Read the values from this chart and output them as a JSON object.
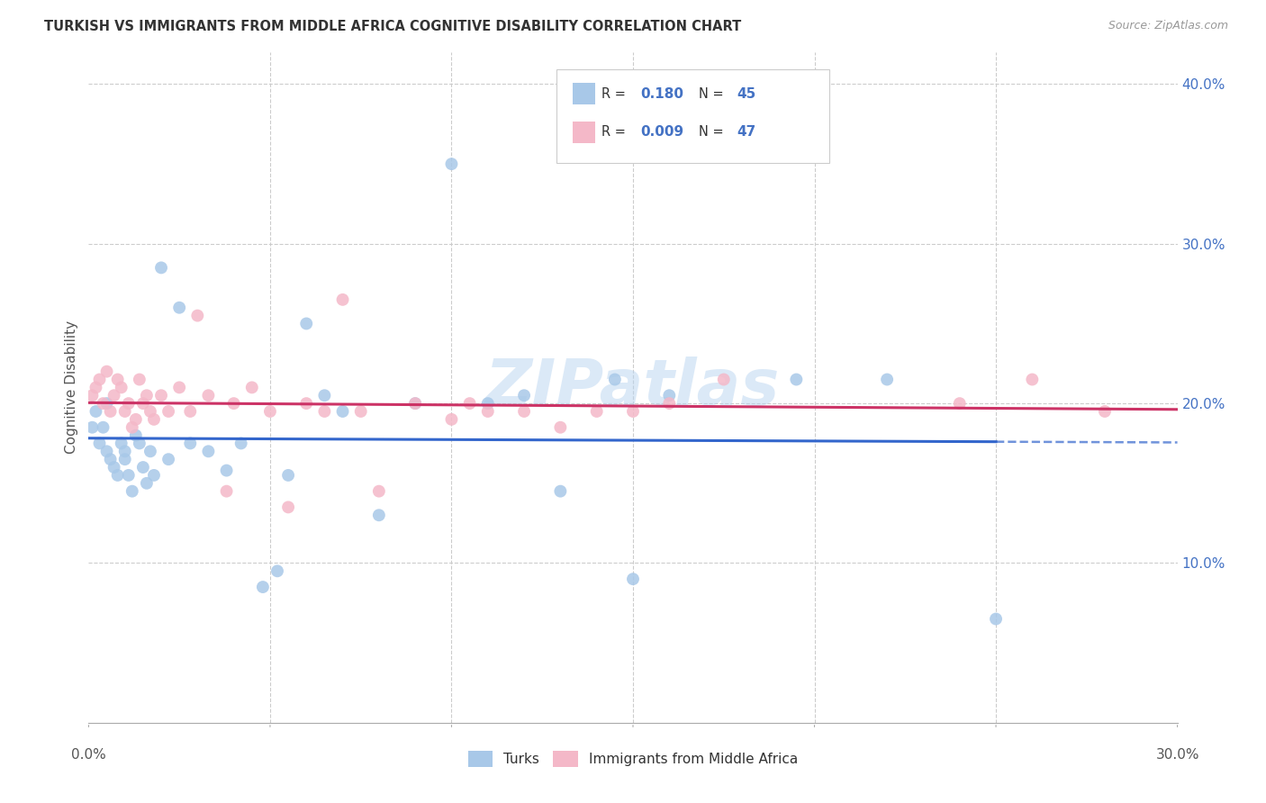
{
  "title": "TURKISH VS IMMIGRANTS FROM MIDDLE AFRICA COGNITIVE DISABILITY CORRELATION CHART",
  "source": "Source: ZipAtlas.com",
  "ylabel": "Cognitive Disability",
  "xlim": [
    0.0,
    0.3
  ],
  "ylim": [
    0.0,
    0.42
  ],
  "background_color": "#ffffff",
  "grid_color": "#cccccc",
  "turks_color": "#a8c8e8",
  "immigrants_color": "#f4b8c8",
  "turks_line_color": "#3366cc",
  "immigrants_line_color": "#cc3366",
  "turks_R": 0.18,
  "turks_N": 45,
  "immigrants_R": 0.009,
  "immigrants_N": 47,
  "watermark": "ZIPatlas",
  "ytick_color": "#4472c4",
  "xtick_color": "#555555",
  "turks_x": [
    0.001,
    0.002,
    0.003,
    0.004,
    0.005,
    0.005,
    0.006,
    0.007,
    0.008,
    0.009,
    0.01,
    0.01,
    0.011,
    0.012,
    0.013,
    0.014,
    0.015,
    0.016,
    0.017,
    0.018,
    0.02,
    0.022,
    0.025,
    0.028,
    0.033,
    0.038,
    0.042,
    0.048,
    0.052,
    0.055,
    0.06,
    0.065,
    0.07,
    0.08,
    0.09,
    0.1,
    0.11,
    0.12,
    0.13,
    0.145,
    0.16,
    0.195,
    0.22,
    0.25,
    0.15
  ],
  "turks_y": [
    0.185,
    0.195,
    0.175,
    0.185,
    0.17,
    0.2,
    0.165,
    0.16,
    0.155,
    0.175,
    0.17,
    0.165,
    0.155,
    0.145,
    0.18,
    0.175,
    0.16,
    0.15,
    0.17,
    0.155,
    0.285,
    0.165,
    0.26,
    0.175,
    0.17,
    0.158,
    0.175,
    0.085,
    0.095,
    0.155,
    0.25,
    0.205,
    0.195,
    0.13,
    0.2,
    0.35,
    0.2,
    0.205,
    0.145,
    0.215,
    0.205,
    0.215,
    0.215,
    0.065,
    0.09
  ],
  "immigrants_x": [
    0.001,
    0.002,
    0.003,
    0.004,
    0.005,
    0.006,
    0.007,
    0.008,
    0.009,
    0.01,
    0.011,
    0.012,
    0.013,
    0.014,
    0.015,
    0.016,
    0.017,
    0.018,
    0.02,
    0.022,
    0.025,
    0.028,
    0.03,
    0.033,
    0.038,
    0.04,
    0.045,
    0.05,
    0.055,
    0.06,
    0.065,
    0.07,
    0.075,
    0.08,
    0.09,
    0.1,
    0.105,
    0.11,
    0.12,
    0.13,
    0.14,
    0.15,
    0.16,
    0.175,
    0.24,
    0.26,
    0.28
  ],
  "immigrants_y": [
    0.205,
    0.21,
    0.215,
    0.2,
    0.22,
    0.195,
    0.205,
    0.215,
    0.21,
    0.195,
    0.2,
    0.185,
    0.19,
    0.215,
    0.2,
    0.205,
    0.195,
    0.19,
    0.205,
    0.195,
    0.21,
    0.195,
    0.255,
    0.205,
    0.145,
    0.2,
    0.21,
    0.195,
    0.135,
    0.2,
    0.195,
    0.265,
    0.195,
    0.145,
    0.2,
    0.19,
    0.2,
    0.195,
    0.195,
    0.185,
    0.195,
    0.195,
    0.2,
    0.215,
    0.2,
    0.215,
    0.195
  ]
}
